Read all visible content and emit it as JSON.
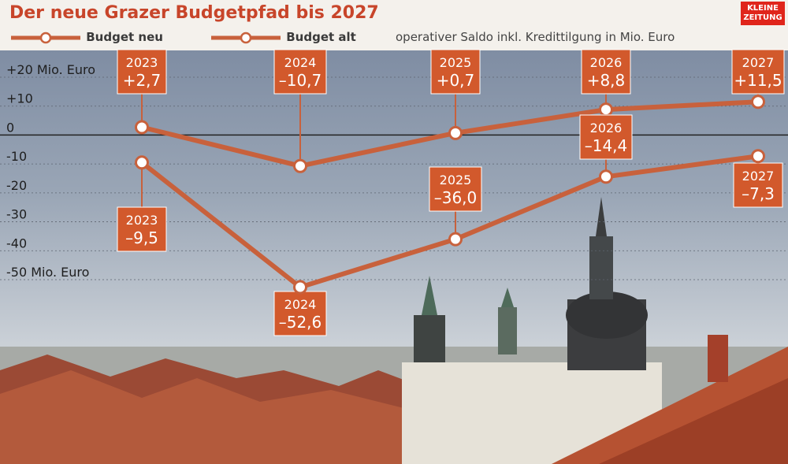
{
  "header": {
    "title": "Der neue Grazer Budgetpfad bis 2027",
    "logo_text": [
      "KLEINE",
      "ZEITUNG"
    ],
    "note": "operativer Saldo inkl. Kredittilgung in Mio. Euro"
  },
  "colors": {
    "line": "#c8613c",
    "label_bg": "#d2592c",
    "title": "#c8452a",
    "logo": "#e0251b",
    "sky": "#8a98ad"
  },
  "chart_data": {
    "type": "line",
    "title": "Der neue Grazer Budgetpfad bis 2027",
    "subtitle": "operativer Saldo inkl. Kredittilgung in Mio. Euro",
    "x": [
      "2023",
      "2024",
      "2025",
      "2026",
      "2027"
    ],
    "series": [
      {
        "name": "Budget neu",
        "values": [
          2.7,
          -10.7,
          0.7,
          8.8,
          11.5
        ],
        "labels": [
          "+2,7",
          "–10,7",
          "+0,7",
          "+8,8",
          "+11,5"
        ]
      },
      {
        "name": "Budget alt",
        "values": [
          -9.5,
          -52.6,
          -36.0,
          -14.4,
          -7.3
        ],
        "labels": [
          "–9,5",
          "–52,6",
          "–36,0",
          "–14,4",
          "–7,3"
        ]
      }
    ],
    "y_ticks": [
      20,
      10,
      0,
      -10,
      -20,
      -30,
      -40,
      -50
    ],
    "y_tick_labels": [
      "+20 Mio. Euro",
      "+10",
      "0",
      "-10",
      "-20",
      "-30",
      "-40",
      "-50 Mio. Euro"
    ],
    "ylim": [
      -50,
      20
    ],
    "grid": true,
    "legend_position": "top"
  }
}
